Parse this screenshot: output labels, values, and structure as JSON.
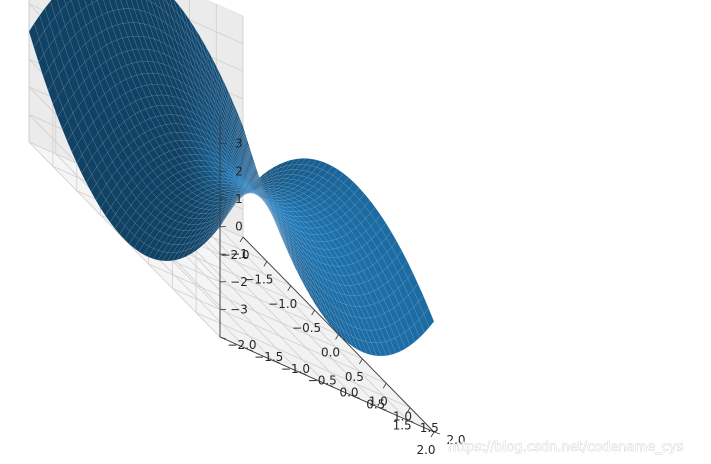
{
  "chart_data": {
    "type": "surface3d",
    "function": "z = x^2 - y^2",
    "surface_color": "#1f77b4",
    "x_range": [
      -2.0,
      2.0
    ],
    "y_range": [
      -2.0,
      2.0
    ],
    "z_range": [
      -4.0,
      4.0
    ],
    "grid_resolution": 40,
    "grid": true,
    "x_ticks": [
      "−2.0",
      "−1.5",
      "−1.0",
      "−0.5",
      "0.0",
      "0.5",
      "1.0",
      "1.5",
      "2.0"
    ],
    "y_ticks": [
      "−2.0",
      "−1.5",
      "−1.0",
      "−0.5",
      "0.0",
      "0.5",
      "1.0",
      "1.5",
      "2.0"
    ],
    "z_ticks": [
      "−3",
      "−2",
      "−1",
      "0",
      "1",
      "2",
      "3"
    ],
    "title": "",
    "xlabel": "",
    "ylabel": "",
    "zlabel": ""
  },
  "watermark": "https://blog.csdn.net/codename_cys"
}
